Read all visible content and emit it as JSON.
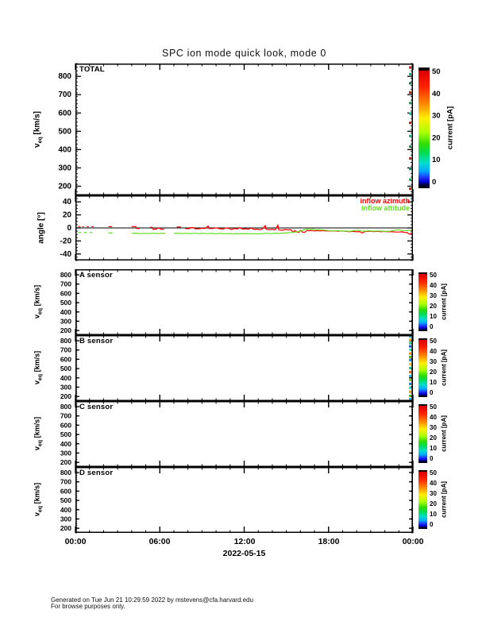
{
  "title": "SPC ion mode quick look, mode 0",
  "velocity_axis_label": {
    "base": "v",
    "sub": "eq",
    "unit": "[km/s]"
  },
  "angle_axis_label": "angle [°]",
  "x_axis": {
    "tick_labels": [
      "00:00",
      "06:00",
      "12:00",
      "18:00",
      "00:00"
    ],
    "date_label": "2022-05-15",
    "range_hours": [
      0,
      24
    ],
    "major_step_hours": 6,
    "minor_step_hours": 1
  },
  "colorbar": {
    "label": "current [pA]",
    "ticks": [
      0,
      10,
      20,
      30,
      40,
      50
    ],
    "range": [
      0,
      50
    ],
    "gradient_stops": [
      {
        "p": 0,
        "c": "#000000"
      },
      {
        "p": 2,
        "c": "#000000"
      },
      {
        "p": 3,
        "c": "#dd0000"
      },
      {
        "p": 16,
        "c": "#ff2200"
      },
      {
        "p": 30,
        "c": "#ff8800"
      },
      {
        "p": 42,
        "c": "#ffee00"
      },
      {
        "p": 54,
        "c": "#aaff00"
      },
      {
        "p": 63,
        "c": "#33dd00"
      },
      {
        "p": 71,
        "c": "#00dd55"
      },
      {
        "p": 79,
        "c": "#00ddcc"
      },
      {
        "p": 86,
        "c": "#00aaff"
      },
      {
        "p": 91,
        "c": "#2233ff"
      },
      {
        "p": 95,
        "c": "#0000cc"
      },
      {
        "p": 97,
        "c": "#000044"
      },
      {
        "p": 100,
        "c": "#000000"
      }
    ]
  },
  "footer": {
    "line1": "Generated on Tue Jun 21 10:29:59 2022 by mstevens@cfa.harvard.edu",
    "line2": "For browse purposes only."
  },
  "chart_data": [
    {
      "id": "total",
      "type": "heatmap",
      "label": "TOTAL",
      "ylabel": "v_eq [km/s]",
      "yrange": [
        150,
        870
      ],
      "yticks": [
        200,
        300,
        400,
        500,
        600,
        700,
        800
      ],
      "ytick_minor_step": 20,
      "has_colorbar": true,
      "series": [],
      "edge_strip": [
        [
          0.03,
          "#cc2200"
        ],
        [
          0.08,
          "#00bb66"
        ],
        [
          0.15,
          "#008844"
        ],
        [
          0.22,
          "#cc2200"
        ],
        [
          0.3,
          "#00aa55"
        ],
        [
          0.38,
          "#00ccaa"
        ],
        [
          0.45,
          "#cc2200"
        ],
        [
          0.55,
          "#00bb66"
        ],
        [
          0.63,
          "#009944"
        ],
        [
          0.72,
          "#cc2200"
        ],
        [
          0.8,
          "#00aa88"
        ],
        [
          0.88,
          "#00bb44"
        ],
        [
          0.95,
          "#cc2200"
        ]
      ]
    },
    {
      "id": "angle",
      "type": "line",
      "label": "",
      "ylabel": "angle [°]",
      "yrange": [
        -50,
        50
      ],
      "yticks": [
        -40,
        -20,
        0,
        20,
        40
      ],
      "ytick_minor_step": 5,
      "zero_line": true,
      "has_colorbar": false,
      "series": [
        {
          "name": "inflow azimuth",
          "color": "#ff0000",
          "points": [
            [
              0.2,
              2
            ],
            [
              0.35,
              2.2
            ],
            null,
            [
              0.5,
              1.8
            ],
            [
              0.6,
              2
            ],
            null,
            [
              0.8,
              2
            ],
            [
              0.95,
              1.6
            ],
            null,
            [
              1.15,
              2
            ],
            [
              1.3,
              1.8
            ],
            null,
            [
              2.35,
              2
            ],
            [
              2.6,
              2
            ],
            null,
            [
              4.0,
              2
            ],
            [
              4.3,
              2.2
            ],
            [
              4.35,
              -0.8
            ],
            [
              4.55,
              -1
            ],
            null,
            [
              5.3,
              1
            ],
            [
              5.45,
              1
            ],
            [
              5.5,
              -2
            ],
            [
              5.75,
              -2
            ],
            [
              5.8,
              -0.5
            ],
            [
              6.0,
              -0.5
            ],
            [
              6.05,
              -2
            ],
            [
              6.3,
              -2
            ],
            null,
            [
              7.2,
              1.5
            ],
            [
              7.5,
              1.5
            ],
            null,
            [
              7.8,
              -1
            ],
            [
              8.1,
              -1.2
            ],
            [
              8.15,
              0.5
            ],
            [
              8.45,
              0.4
            ],
            [
              8.5,
              -1.5
            ],
            [
              8.8,
              -1.2
            ],
            [
              9.0,
              -0.5
            ],
            [
              9.2,
              -1
            ],
            [
              9.45,
              3
            ],
            [
              9.5,
              -1
            ],
            [
              9.8,
              -0.8
            ],
            [
              10.0,
              0.3
            ],
            [
              10.2,
              -1
            ],
            [
              10.5,
              -1.8
            ],
            [
              10.7,
              0
            ],
            [
              10.9,
              -0.6
            ],
            [
              11.1,
              -2.6
            ],
            [
              11.3,
              -0.8
            ],
            [
              11.5,
              -1.6
            ],
            [
              11.7,
              0.4
            ],
            [
              11.9,
              -1.8
            ],
            [
              12.1,
              -1.2
            ],
            [
              12.3,
              -2
            ],
            [
              12.5,
              -0.2
            ],
            [
              12.7,
              -2.4
            ],
            [
              12.9,
              -1.8
            ],
            [
              13.1,
              -2.8
            ],
            [
              13.3,
              -1.6
            ],
            [
              13.5,
              3.8
            ],
            [
              13.55,
              -2
            ],
            [
              13.8,
              -2.6
            ],
            [
              14.0,
              -2
            ],
            [
              14.2,
              -3
            ],
            [
              14.4,
              4.6
            ],
            [
              14.45,
              -2.8
            ],
            [
              14.7,
              -3.6
            ],
            [
              14.9,
              -2.4
            ],
            [
              15.1,
              -3
            ],
            [
              15.3,
              -2.6
            ],
            [
              15.5,
              -6.8
            ],
            [
              15.6,
              -3.8
            ],
            [
              15.75,
              -6.5
            ],
            [
              15.9,
              -6.8
            ],
            [
              16.0,
              -3.6
            ],
            [
              16.15,
              -6.6
            ],
            [
              16.3,
              -6.8
            ],
            [
              16.45,
              -4
            ],
            [
              16.6,
              -4.4
            ],
            [
              16.8,
              -4
            ],
            [
              17.0,
              -4.6
            ],
            [
              17.2,
              -4.2
            ],
            [
              17.4,
              -4.6
            ],
            [
              17.6,
              -4.2
            ],
            [
              17.8,
              -4.8
            ],
            [
              18.0,
              -4.4
            ],
            [
              18.2,
              -4.8
            ],
            [
              18.5,
              -4.4
            ],
            [
              18.7,
              -5
            ],
            [
              19.0,
              -4.6
            ],
            [
              19.2,
              -5.2
            ],
            [
              19.5,
              -5.8
            ],
            [
              19.7,
              -5.2
            ],
            [
              20.0,
              -6
            ],
            [
              20.2,
              -5.6
            ],
            [
              20.4,
              -7.8
            ],
            [
              20.55,
              -5.8
            ],
            [
              20.8,
              -5.4
            ],
            [
              21.0,
              -5
            ],
            [
              21.2,
              -5.6
            ],
            [
              21.5,
              -5.2
            ],
            [
              21.7,
              -5.8
            ],
            [
              22.0,
              -5.4
            ],
            [
              22.2,
              -6
            ],
            [
              22.5,
              -5.6
            ],
            [
              22.7,
              -6.2
            ],
            [
              23.0,
              -6.4
            ],
            [
              23.2,
              -6
            ],
            [
              23.4,
              -6.8
            ],
            [
              23.6,
              -7.2
            ],
            [
              23.75,
              -10
            ],
            [
              23.85,
              -8.4
            ],
            [
              24.0,
              -7.8
            ]
          ]
        },
        {
          "name": "inflow attitude",
          "color": "#66dd22",
          "points": [
            [
              0.2,
              -6.8
            ],
            [
              0.4,
              -7.2
            ],
            null,
            [
              0.6,
              -6.8
            ],
            [
              0.8,
              -7
            ],
            null,
            [
              1.0,
              -7.2
            ],
            [
              1.2,
              -6.8
            ],
            null,
            [
              2.35,
              -7.4
            ],
            [
              2.65,
              -7.8
            ],
            null,
            [
              4.0,
              -8.4
            ],
            [
              4.3,
              -8
            ],
            [
              4.6,
              -8.6
            ],
            [
              4.9,
              -8.2
            ],
            [
              5.2,
              -8.6
            ],
            [
              5.5,
              -8.2
            ],
            [
              5.8,
              -8.6
            ],
            [
              6.1,
              -8.2
            ],
            [
              6.4,
              -8.4
            ],
            null,
            [
              7.0,
              -8.4
            ],
            [
              7.3,
              -8
            ],
            [
              7.6,
              -8.6
            ],
            [
              7.9,
              -8.2
            ],
            [
              8.2,
              -8.6
            ],
            [
              8.5,
              -8.2
            ],
            [
              8.8,
              -8.6
            ],
            [
              9.1,
              -8.2
            ],
            [
              9.4,
              -8.8
            ],
            [
              9.7,
              -8.4
            ],
            [
              10.0,
              -9
            ],
            [
              10.3,
              -8.4
            ],
            [
              10.6,
              -9
            ],
            [
              10.9,
              -8.6
            ],
            [
              11.2,
              -9.2
            ],
            [
              11.5,
              -8.6
            ],
            [
              11.8,
              -9
            ],
            [
              12.1,
              -8.6
            ],
            [
              12.4,
              -9.2
            ],
            [
              12.7,
              -8.8
            ],
            [
              13.0,
              -9.2
            ],
            [
              13.3,
              -8.6
            ],
            [
              13.6,
              -8.2
            ],
            [
              13.9,
              -8.6
            ],
            [
              14.2,
              -8
            ],
            [
              14.5,
              -8.4
            ],
            [
              14.8,
              -7.8
            ],
            [
              15.1,
              -7.4
            ],
            [
              15.4,
              -7
            ],
            [
              15.7,
              -6.2
            ],
            [
              16.0,
              -5
            ],
            [
              16.3,
              -2.6
            ],
            [
              16.5,
              -1.8
            ],
            [
              16.7,
              -2.4
            ],
            [
              16.9,
              -1.6
            ],
            [
              17.1,
              -3
            ],
            [
              17.3,
              -2.4
            ],
            [
              17.5,
              -3
            ],
            [
              17.7,
              -3.4
            ],
            [
              18.0,
              -4.2
            ],
            [
              18.3,
              -4.6
            ],
            [
              18.6,
              -4
            ],
            [
              18.9,
              -5
            ],
            [
              19.2,
              -4.8
            ],
            [
              19.5,
              -5.4
            ],
            [
              19.8,
              -4.2
            ],
            [
              20.1,
              -3.4
            ],
            [
              20.3,
              -4.6
            ],
            [
              20.6,
              -5
            ],
            [
              20.9,
              -4.4
            ],
            [
              21.2,
              -5
            ],
            [
              21.5,
              -4.6
            ],
            [
              21.8,
              -5
            ],
            [
              22.1,
              -5.4
            ],
            [
              22.4,
              -5
            ],
            [
              22.7,
              -3.6
            ],
            [
              23.0,
              -2.8
            ],
            [
              23.3,
              -4.4
            ],
            [
              23.6,
              -4.2
            ],
            [
              23.9,
              -3.4
            ],
            [
              24.0,
              -3.6
            ]
          ]
        }
      ]
    },
    {
      "id": "a",
      "type": "heatmap",
      "label": "A sensor",
      "ylabel": "v_eq [km/s]",
      "yrange": [
        150,
        860
      ],
      "yticks": [
        200,
        300,
        400,
        500,
        600,
        700,
        800
      ],
      "ytick_minor_step": 20,
      "has_colorbar": true,
      "series": []
    },
    {
      "id": "b",
      "type": "heatmap",
      "label": "B sensor",
      "ylabel": "v_eq [km/s]",
      "yrange": [
        150,
        860
      ],
      "yticks": [
        200,
        300,
        400,
        500,
        600,
        700,
        800
      ],
      "ytick_minor_step": 20,
      "has_colorbar": true,
      "series": [],
      "edge_strip": [
        [
          0.02,
          "#00ccff"
        ],
        [
          0.07,
          "#ffaa00"
        ],
        [
          0.12,
          "#00dd66"
        ],
        [
          0.17,
          "#0066ff"
        ],
        [
          0.22,
          "#00ffcc"
        ],
        [
          0.28,
          "#ff8800"
        ],
        [
          0.33,
          "#33cc00"
        ],
        [
          0.38,
          "#00aaff"
        ],
        [
          0.44,
          "#ffcc00"
        ],
        [
          0.5,
          "#00dd88"
        ],
        [
          0.56,
          "#ff6600"
        ],
        [
          0.62,
          "#00ccff"
        ],
        [
          0.68,
          "#66dd00"
        ],
        [
          0.74,
          "#0088ff"
        ],
        [
          0.8,
          "#00eebb"
        ],
        [
          0.86,
          "#ff9900"
        ],
        [
          0.92,
          "#44cc00"
        ],
        [
          0.97,
          "#00bbff"
        ]
      ]
    },
    {
      "id": "c",
      "type": "heatmap",
      "label": "C sensor",
      "ylabel": "v_eq [km/s]",
      "yrange": [
        150,
        860
      ],
      "yticks": [
        200,
        300,
        400,
        500,
        600,
        700,
        800
      ],
      "ytick_minor_step": 20,
      "has_colorbar": true,
      "series": []
    },
    {
      "id": "d",
      "type": "heatmap",
      "label": "D sensor",
      "ylabel": "v_eq [km/s]",
      "yrange": [
        150,
        860
      ],
      "yticks": [
        200,
        300,
        400,
        500,
        600,
        700,
        800
      ],
      "ytick_minor_step": 20,
      "has_colorbar": true,
      "series": []
    }
  ]
}
